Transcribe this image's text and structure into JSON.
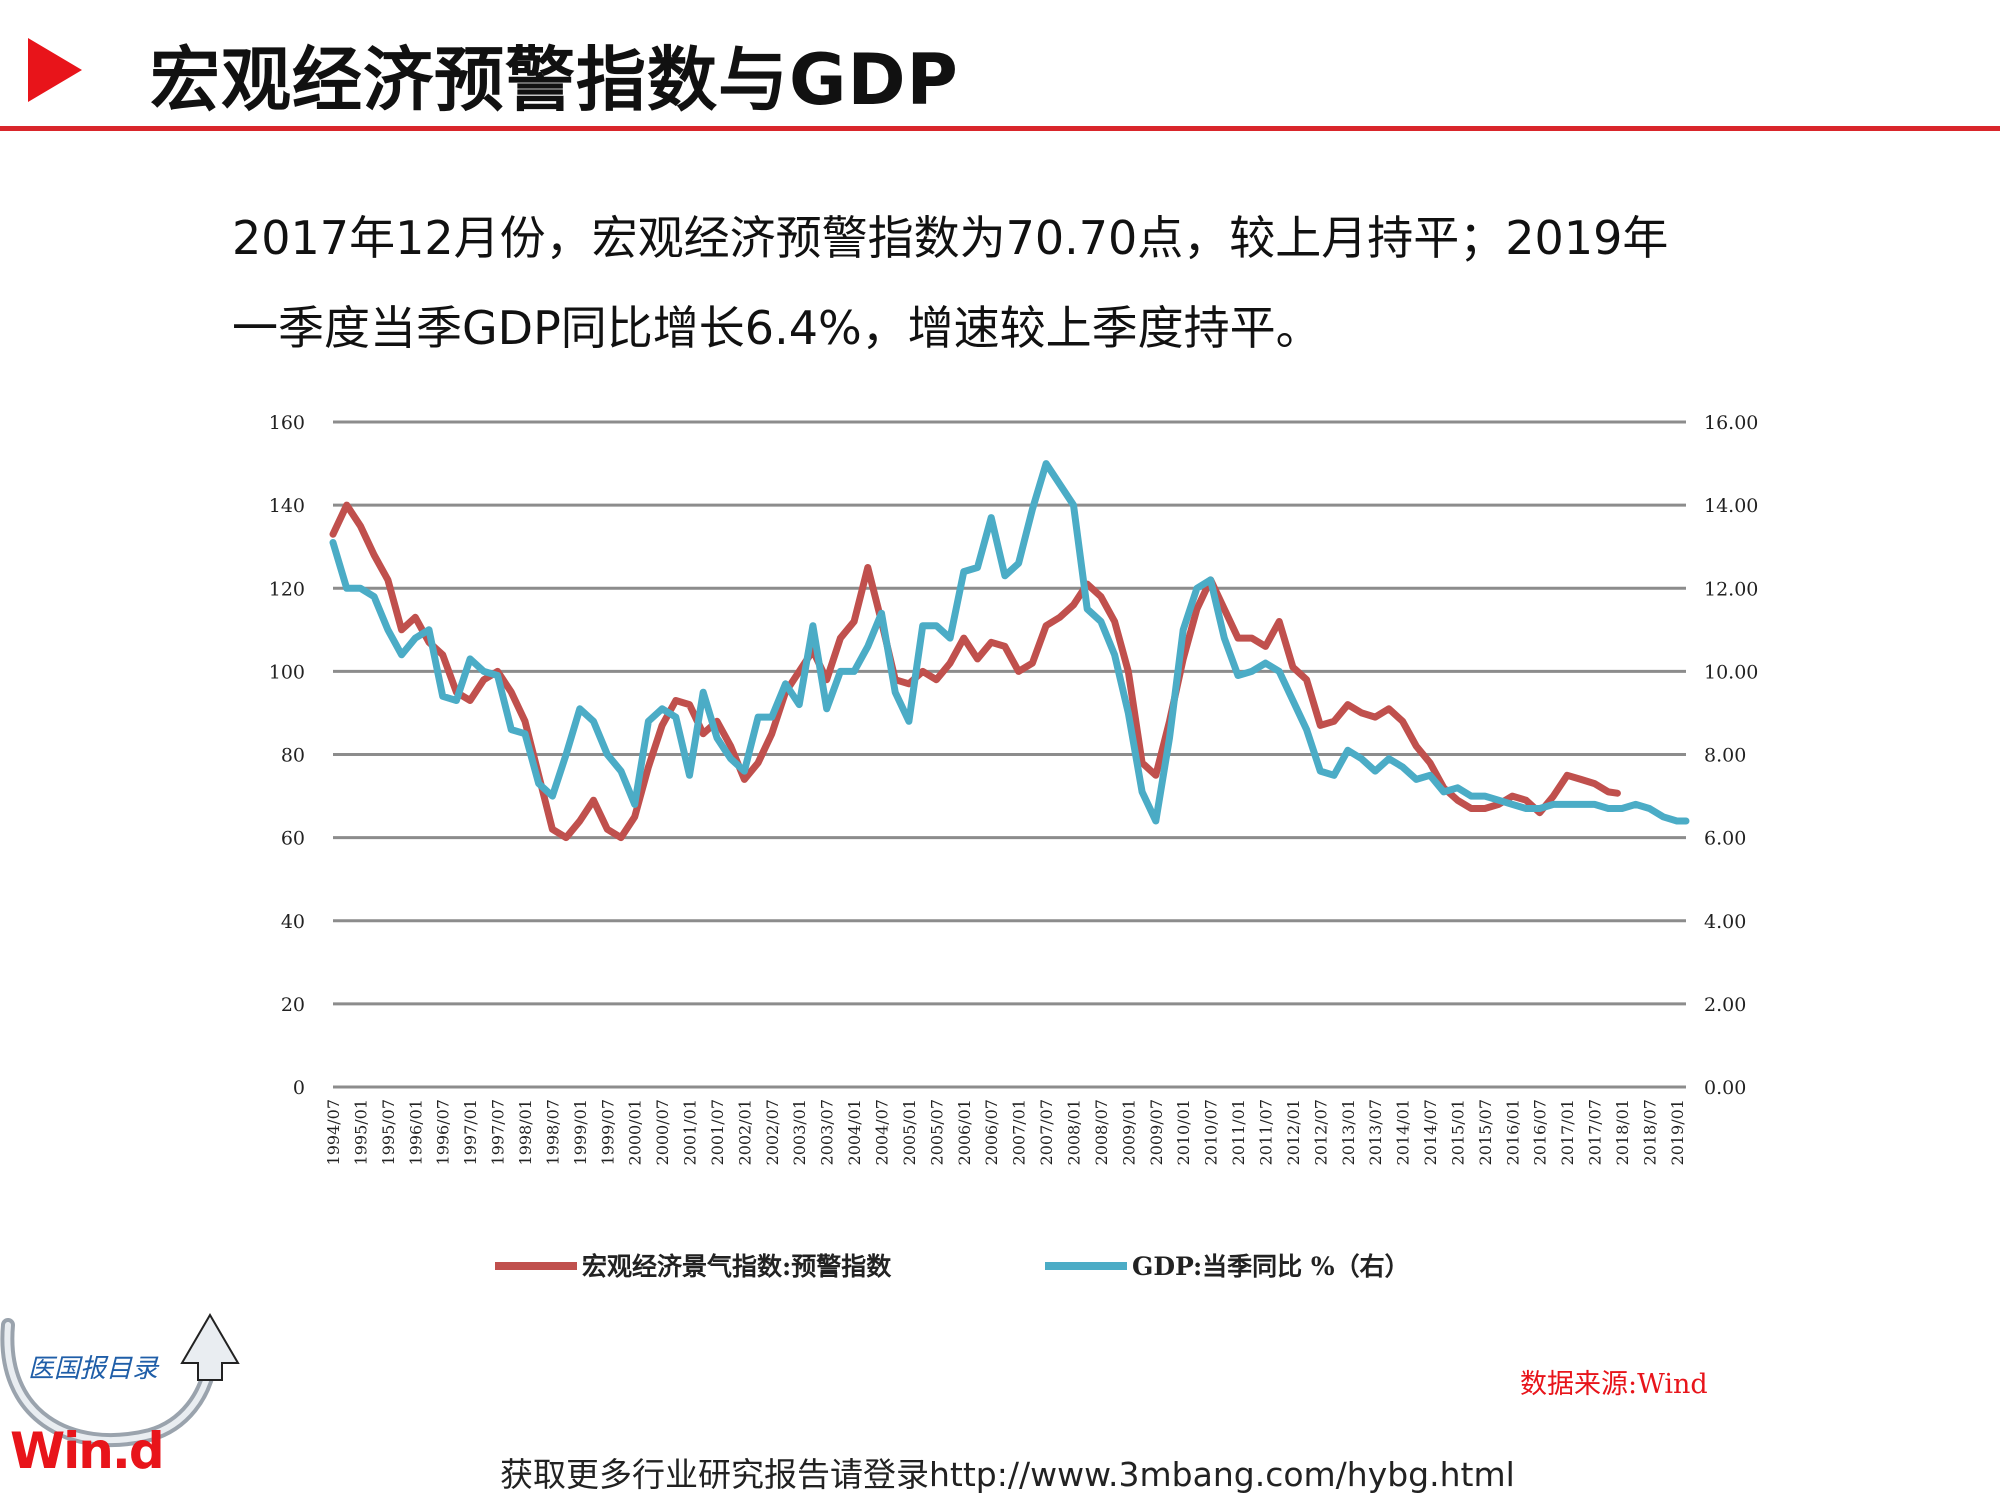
{
  "slide": {
    "title": "宏观经济预警指数与GDP",
    "summary_line1": "2017年12月份，宏观经济预警指数为70.70点，较上月持平；2019年",
    "summary_line2": "一季度当季GDP同比增长6.4%，增速较上季度持平。",
    "source": "数据来源:Wind",
    "footer": "获取更多行业研究报告请登录http://www.3mbang.com/hybg.html",
    "logo_text": "Win.d",
    "logo_caption": "医国报目录"
  },
  "colors": {
    "accent": "#e8141a",
    "rule": "#d9262b",
    "series_warning": "#c0504d",
    "series_gdp": "#4bacc6",
    "grid": "#8c8c8c"
  },
  "chart_data": {
    "type": "line",
    "title": "",
    "x_start": "1994/07",
    "x_end": "2019/03",
    "x_labels": [
      "1994/07",
      "1995/01",
      "1995/07",
      "1996/01",
      "1996/07",
      "1997/01",
      "1997/07",
      "1998/01",
      "1998/07",
      "1999/01",
      "1999/07",
      "2000/01",
      "2000/07",
      "2001/01",
      "2001/07",
      "2002/01",
      "2002/07",
      "2003/01",
      "2003/07",
      "2004/01",
      "2004/07",
      "2005/01",
      "2005/07",
      "2006/01",
      "2006/07",
      "2007/01",
      "2007/07",
      "2008/01",
      "2008/07",
      "2009/01",
      "2009/07",
      "2010/01",
      "2010/07",
      "2011/01",
      "2011/07",
      "2012/01",
      "2012/07",
      "2013/01",
      "2013/07",
      "2014/01",
      "2014/07",
      "2015/01",
      "2015/07",
      "2016/01",
      "2016/07",
      "2017/01",
      "2017/07",
      "2018/01",
      "2018/07",
      "2019/01"
    ],
    "y_left": {
      "min": 0,
      "max": 160,
      "ticks": [
        "0",
        "20",
        "40",
        "60",
        "80",
        "100",
        "120",
        "140",
        "160"
      ]
    },
    "y_right": {
      "min": 0,
      "max": 16,
      "ticks": [
        "0.00",
        "2.00",
        "4.00",
        "6.00",
        "8.00",
        "10.00",
        "12.00",
        "14.00",
        "16.00"
      ]
    },
    "grid": true,
    "legend_position": "bottom",
    "series": [
      {
        "name": "宏观经济景气指数:预警指数",
        "axis": "left",
        "points": [
          [
            "1994/07",
            133
          ],
          [
            "1994/10",
            140
          ],
          [
            "1995/01",
            135
          ],
          [
            "1995/04",
            128
          ],
          [
            "1995/07",
            122
          ],
          [
            "1995/10",
            110
          ],
          [
            "1996/01",
            113
          ],
          [
            "1996/04",
            107
          ],
          [
            "1996/07",
            104
          ],
          [
            "1996/10",
            95
          ],
          [
            "1997/01",
            93
          ],
          [
            "1997/04",
            98
          ],
          [
            "1997/07",
            100
          ],
          [
            "1997/10",
            95
          ],
          [
            "1998/01",
            88
          ],
          [
            "1998/04",
            75
          ],
          [
            "1998/07",
            62
          ],
          [
            "1998/10",
            60
          ],
          [
            "1999/01",
            64
          ],
          [
            "1999/04",
            69
          ],
          [
            "1999/07",
            62
          ],
          [
            "1999/10",
            60
          ],
          [
            "2000/01",
            65
          ],
          [
            "2000/04",
            77
          ],
          [
            "2000/07",
            87
          ],
          [
            "2000/10",
            93
          ],
          [
            "2001/01",
            92
          ],
          [
            "2001/04",
            85
          ],
          [
            "2001/07",
            88
          ],
          [
            "2001/10",
            82
          ],
          [
            "2002/01",
            74
          ],
          [
            "2002/04",
            78
          ],
          [
            "2002/07",
            85
          ],
          [
            "2002/10",
            95
          ],
          [
            "2003/01",
            100
          ],
          [
            "2003/04",
            105
          ],
          [
            "2003/07",
            98
          ],
          [
            "2003/10",
            108
          ],
          [
            "2004/01",
            112
          ],
          [
            "2004/04",
            125
          ],
          [
            "2004/07",
            112
          ],
          [
            "2004/10",
            98
          ],
          [
            "2005/01",
            97
          ],
          [
            "2005/04",
            100
          ],
          [
            "2005/07",
            98
          ],
          [
            "2005/10",
            102
          ],
          [
            "2006/01",
            108
          ],
          [
            "2006/04",
            103
          ],
          [
            "2006/07",
            107
          ],
          [
            "2006/10",
            106
          ],
          [
            "2007/01",
            100
          ],
          [
            "2007/04",
            102
          ],
          [
            "2007/07",
            111
          ],
          [
            "2007/10",
            113
          ],
          [
            "2008/01",
            116
          ],
          [
            "2008/04",
            121
          ],
          [
            "2008/07",
            118
          ],
          [
            "2008/10",
            112
          ],
          [
            "2009/01",
            100
          ],
          [
            "2009/04",
            78
          ],
          [
            "2009/07",
            75
          ],
          [
            "2009/10",
            88
          ],
          [
            "2010/01",
            103
          ],
          [
            "2010/04",
            115
          ],
          [
            "2010/07",
            122
          ],
          [
            "2010/10",
            115
          ],
          [
            "2011/01",
            108
          ],
          [
            "2011/04",
            108
          ],
          [
            "2011/07",
            106
          ],
          [
            "2011/10",
            112
          ],
          [
            "2012/01",
            101
          ],
          [
            "2012/04",
            98
          ],
          [
            "2012/07",
            87
          ],
          [
            "2012/10",
            88
          ],
          [
            "2013/01",
            92
          ],
          [
            "2013/04",
            90
          ],
          [
            "2013/07",
            89
          ],
          [
            "2013/10",
            91
          ],
          [
            "2014/01",
            88
          ],
          [
            "2014/04",
            82
          ],
          [
            "2014/07",
            78
          ],
          [
            "2014/10",
            72
          ],
          [
            "2015/01",
            69
          ],
          [
            "2015/04",
            67
          ],
          [
            "2015/07",
            67
          ],
          [
            "2015/10",
            68
          ],
          [
            "2016/01",
            70
          ],
          [
            "2016/04",
            69
          ],
          [
            "2016/07",
            66
          ],
          [
            "2016/10",
            70
          ],
          [
            "2017/01",
            75
          ],
          [
            "2017/04",
            74
          ],
          [
            "2017/07",
            73
          ],
          [
            "2017/10",
            71
          ],
          [
            "2017/12",
            70.7
          ]
        ]
      },
      {
        "name": "GDP:当季同比 %（右）",
        "axis": "right",
        "points": [
          [
            "1994/07",
            13.1
          ],
          [
            "1994/10",
            12.0
          ],
          [
            "1995/01",
            12.0
          ],
          [
            "1995/04",
            11.8
          ],
          [
            "1995/07",
            11.0
          ],
          [
            "1995/10",
            10.4
          ],
          [
            "1996/01",
            10.8
          ],
          [
            "1996/04",
            11.0
          ],
          [
            "1996/07",
            9.4
          ],
          [
            "1996/10",
            9.3
          ],
          [
            "1997/01",
            10.3
          ],
          [
            "1997/04",
            10.0
          ],
          [
            "1997/07",
            9.9
          ],
          [
            "1997/10",
            8.6
          ],
          [
            "1998/01",
            8.5
          ],
          [
            "1998/04",
            7.3
          ],
          [
            "1998/07",
            7.0
          ],
          [
            "1998/10",
            8.0
          ],
          [
            "1999/01",
            9.1
          ],
          [
            "1999/04",
            8.8
          ],
          [
            "1999/07",
            8.0
          ],
          [
            "1999/10",
            7.6
          ],
          [
            "2000/01",
            6.8
          ],
          [
            "2000/04",
            8.8
          ],
          [
            "2000/07",
            9.1
          ],
          [
            "2000/10",
            8.9
          ],
          [
            "2001/01",
            7.5
          ],
          [
            "2001/04",
            9.5
          ],
          [
            "2001/07",
            8.4
          ],
          [
            "2001/10",
            7.9
          ],
          [
            "2002/01",
            7.6
          ],
          [
            "2002/04",
            8.9
          ],
          [
            "2002/07",
            8.9
          ],
          [
            "2002/10",
            9.7
          ],
          [
            "2003/01",
            9.2
          ],
          [
            "2003/04",
            11.1
          ],
          [
            "2003/07",
            9.1
          ],
          [
            "2003/10",
            10.0
          ],
          [
            "2004/01",
            10.0
          ],
          [
            "2004/04",
            10.6
          ],
          [
            "2004/07",
            11.4
          ],
          [
            "2004/10",
            9.5
          ],
          [
            "2005/01",
            8.8
          ],
          [
            "2005/04",
            11.1
          ],
          [
            "2005/07",
            11.1
          ],
          [
            "2005/10",
            10.8
          ],
          [
            "2006/01",
            12.4
          ],
          [
            "2006/04",
            12.5
          ],
          [
            "2006/07",
            13.7
          ],
          [
            "2006/10",
            12.3
          ],
          [
            "2007/01",
            12.6
          ],
          [
            "2007/04",
            13.9
          ],
          [
            "2007/07",
            15.0
          ],
          [
            "2007/10",
            14.5
          ],
          [
            "2008/01",
            14.0
          ],
          [
            "2008/04",
            11.5
          ],
          [
            "2008/07",
            11.2
          ],
          [
            "2008/10",
            10.4
          ],
          [
            "2009/01",
            9.0
          ],
          [
            "2009/04",
            7.1
          ],
          [
            "2009/07",
            6.4
          ],
          [
            "2009/10",
            8.4
          ],
          [
            "2010/01",
            11.0
          ],
          [
            "2010/04",
            12.0
          ],
          [
            "2010/07",
            12.2
          ],
          [
            "2010/10",
            10.8
          ],
          [
            "2011/01",
            9.9
          ],
          [
            "2011/04",
            10.0
          ],
          [
            "2011/07",
            10.2
          ],
          [
            "2011/10",
            10.0
          ],
          [
            "2012/01",
            9.3
          ],
          [
            "2012/04",
            8.6
          ],
          [
            "2012/07",
            7.6
          ],
          [
            "2012/10",
            7.5
          ],
          [
            "2013/01",
            8.1
          ],
          [
            "2013/04",
            7.9
          ],
          [
            "2013/07",
            7.6
          ],
          [
            "2013/10",
            7.9
          ],
          [
            "2014/01",
            7.7
          ],
          [
            "2014/04",
            7.4
          ],
          [
            "2014/07",
            7.5
          ],
          [
            "2014/10",
            7.1
          ],
          [
            "2015/01",
            7.2
          ],
          [
            "2015/04",
            7.0
          ],
          [
            "2015/07",
            7.0
          ],
          [
            "2015/10",
            6.9
          ],
          [
            "2016/01",
            6.8
          ],
          [
            "2016/04",
            6.7
          ],
          [
            "2016/07",
            6.7
          ],
          [
            "2016/10",
            6.8
          ],
          [
            "2017/01",
            6.8
          ],
          [
            "2017/04",
            6.8
          ],
          [
            "2017/07",
            6.8
          ],
          [
            "2017/10",
            6.7
          ],
          [
            "2018/01",
            6.7
          ],
          [
            "2018/04",
            6.8
          ],
          [
            "2018/07",
            6.7
          ],
          [
            "2018/10",
            6.5
          ],
          [
            "2019/01",
            6.4
          ],
          [
            "2019/03",
            6.4
          ]
        ]
      }
    ]
  }
}
